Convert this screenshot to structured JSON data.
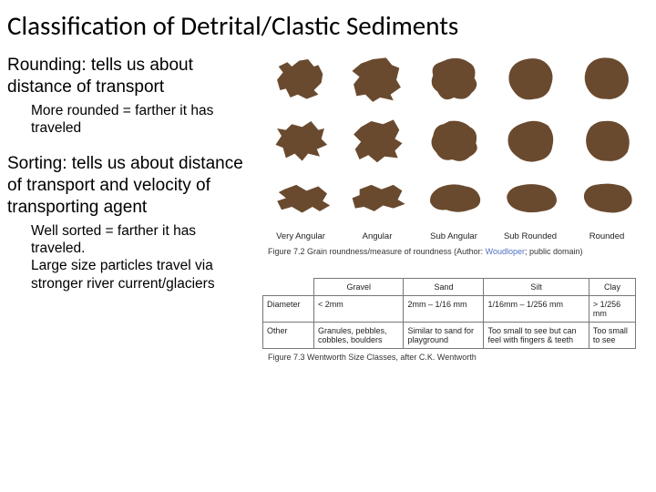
{
  "title": "Classification of Detrital/Clastic Sediments",
  "left": {
    "h1": "Rounding: tells us about distance of transport",
    "s1": "More rounded = farther it has traveled",
    "h2": "Sorting: tells us about distance of transport and velocity of transporting agent",
    "s2": "Well sorted = farther it has traveled.\nLarge size particles travel via stronger river current/glaciers"
  },
  "grains": {
    "color": "#6a4a2f",
    "labels": [
      "Very Angular",
      "Angular",
      "Sub Angular",
      "Sub Rounded",
      "Rounded"
    ],
    "caption_prefix": "Figure 7.2 Grain roundness/measure of roundness (Author: ",
    "caption_link": "Woudloper",
    "caption_suffix": "; public domain)",
    "rows": [
      [
        "M40 12 L52 10 L60 20 L66 18 L72 30 L70 42 L60 52 L66 58 L50 64 L38 58 L28 62 L22 50 L14 52 L10 38 L18 28 L12 20 L24 14 L30 20 Z",
        "M36 10 L54 8 L62 18 L72 22 L68 38 L74 48 L60 58 L64 66 L46 62 L36 68 L26 58 L14 60 L10 44 L18 34 L8 26 L20 16 Z",
        "M34 10 Q50 6 62 14 Q74 20 70 36 Q78 46 66 56 Q58 68 42 62 Q28 70 20 54 Q8 46 14 32 Q10 18 24 14 Z",
        "M36 10 Q56 6 66 18 Q76 30 70 46 Q66 62 48 64 Q30 68 20 54 Q10 42 14 28 Q18 14 36 10 Z",
        "M40 8 Q60 8 68 24 Q76 40 66 54 Q56 66 40 64 Q24 64 16 50 Q8 36 16 20 Q24 8 40 8 Z"
      ],
      [
        "M30 14 L44 18 L56 10 L66 22 L74 20 L70 34 L78 42 L64 48 L68 58 L52 54 L44 64 L34 54 L22 60 L18 46 L8 42 L16 30 L10 20 L22 22 Z",
        "M34 10 L50 14 L64 8 L72 22 L66 34 L76 40 L66 50 L70 60 L52 58 L42 66 L30 56 L18 62 L12 48 L20 38 L10 28 L20 18 Z",
        "M36 10 Q54 8 64 18 Q76 24 72 40 Q78 50 64 58 Q54 68 40 62 Q26 66 18 52 Q8 42 14 30 Q16 16 28 14 Z",
        "M34 12 Q52 6 66 16 Q76 28 72 44 Q70 60 52 64 Q36 68 24 58 Q10 48 12 32 Q14 18 34 12 Z",
        "M38 10 Q58 8 68 22 Q76 36 70 52 Q60 66 42 64 Q24 64 16 48 Q10 32 20 18 Q28 10 38 10 Z"
      ],
      [
        "M20 22 L36 16 L50 24 L66 18 L78 28 L72 38 L82 44 L68 52 L58 46 L44 54 L30 46 L16 50 L10 38 L22 34 L12 26 Z",
        "M18 22 L34 16 L48 22 L64 16 L76 24 L70 36 L80 42 L64 48 L50 44 L38 52 L24 46 L12 48 L8 34 L18 30 Z",
        "M22 20 Q40 12 58 18 Q74 20 78 34 Q80 46 64 50 Q48 56 32 50 Q16 52 10 40 Q8 28 22 20 Z",
        "M24 18 Q44 12 62 18 Q78 24 78 38 Q76 50 58 52 Q40 56 24 50 Q10 44 10 32 Q12 22 24 18 Z",
        "M26 16 Q46 12 64 18 Q78 26 76 40 Q72 52 52 54 Q32 54 18 46 Q8 36 12 26 Q16 18 26 16 Z"
      ]
    ]
  },
  "sizeTable": {
    "headerRow": [
      "",
      "Gravel",
      "Sand",
      "Silt",
      "Clay"
    ],
    "rows": [
      [
        "Diameter",
        "< 2mm",
        "2mm – 1/16 mm",
        "1/16mm – 1/256 mm",
        "> 1/256 mm"
      ],
      [
        "Other",
        "Granules, pebbles, cobbles, boulders",
        "Similar to sand for playground",
        "Too small to see but can feel with fingers & teeth",
        "Too small to see"
      ]
    ],
    "caption": "Figure 7.3 Wentworth Size Classes, after C.K. Wentworth"
  }
}
